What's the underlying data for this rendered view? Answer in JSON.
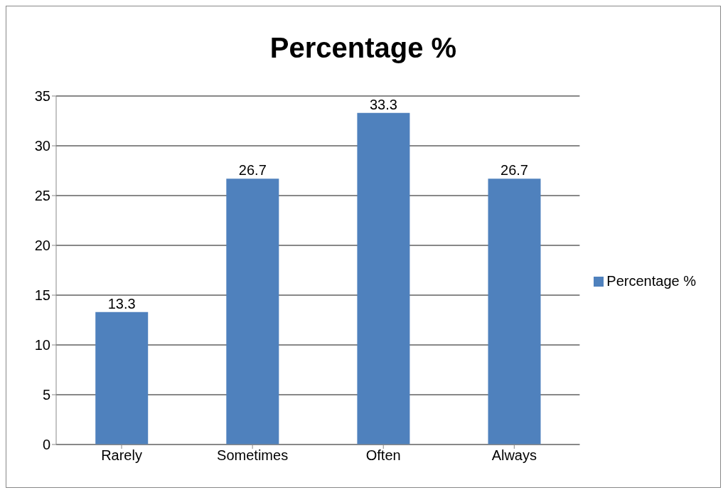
{
  "chart_data": {
    "type": "bar",
    "title": "Percentage %",
    "categories": [
      "Rarely",
      "Sometimes",
      "Often",
      "Always"
    ],
    "series": [
      {
        "name": "Percentage %",
        "color": "#4f81bd",
        "values": [
          13.3,
          26.7,
          33.3,
          26.7
        ]
      }
    ],
    "ylim": [
      0,
      35
    ],
    "yticks": [
      0,
      5,
      10,
      15,
      20,
      25,
      30,
      35
    ],
    "grid": "y",
    "legend": "right",
    "data_labels": true
  }
}
